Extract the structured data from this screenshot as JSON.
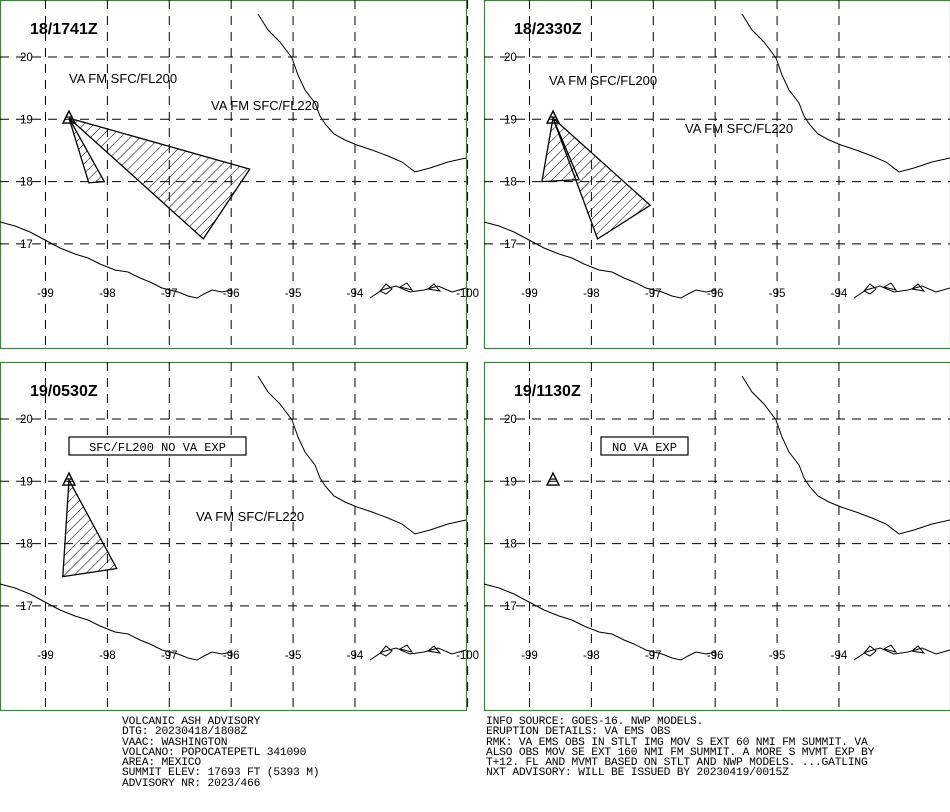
{
  "panels": [
    {
      "time": "18/1741Z",
      "labels": [
        "VA FM SFC/FL200",
        "VA FM SFC/FL220"
      ],
      "boxed_label": "",
      "polygons": [
        [
          [
            -98.62,
            19.02
          ],
          [
            -98.3,
            17.98
          ],
          [
            -98.05,
            18.0
          ]
        ],
        [
          [
            -98.62,
            19.02
          ],
          [
            -95.7,
            18.2
          ],
          [
            -96.45,
            17.08
          ]
        ]
      ]
    },
    {
      "time": "18/2330Z",
      "labels": [
        "VA FM SFC/FL200",
        "VA FM SFC/FL220"
      ],
      "boxed_label": "",
      "polygons": [
        [
          [
            -98.62,
            19.02
          ],
          [
            -98.8,
            18.0
          ],
          [
            -98.2,
            18.03
          ]
        ],
        [
          [
            -98.62,
            19.02
          ],
          [
            -97.05,
            17.62
          ],
          [
            -97.9,
            17.08
          ]
        ]
      ]
    },
    {
      "time": "19/0530Z",
      "labels": [
        "VA FM SFC/FL220"
      ],
      "boxed_label": "SFC/FL200 NO VA EXP",
      "polygons": [
        [
          [
            -98.62,
            19.02
          ],
          [
            -98.72,
            17.47
          ],
          [
            -97.85,
            17.6
          ]
        ]
      ]
    },
    {
      "time": "19/1130Z",
      "labels": [],
      "boxed_label": "NO VA EXP",
      "polygons": []
    }
  ],
  "map": {
    "lat_labels": [
      "20",
      "19",
      "18",
      "17"
    ],
    "lon_labels": [
      "-100",
      "-99",
      "-98",
      "-97",
      "-96",
      "-95",
      "-94"
    ],
    "volcano": {
      "lon": -98.62,
      "lat": 19.02,
      "icon": "volcano-triangle-icon"
    },
    "frame_color": "#2e8b2e"
  },
  "advisory_left": [
    "VOLCANIC ASH ADVISORY",
    "DTG: 20230418/1808Z",
    "VAAC: WASHINGTON",
    "VOLCANO: POPOCATEPETL 341090",
    "AREA: MEXICO",
    "SUMMIT ELEV: 17693 FT (5393 M)",
    "ADVISORY NR: 2023/466"
  ],
  "advisory_right": [
    "INFO SOURCE: GOES-16. NWP MODELS.",
    "ERUPTION DETAILS: VA EMS OBS",
    "RMK: VA EMS OBS IN STLT IMG MOV S EXT 60 NMI FM SUMMIT. VA",
    "ALSO OBS MOV SE EXT 160 NMI FM SUMMIT. A MORE S MVMT EXP BY",
    "T+12. FL AND MVMT BASED ON STLT AND NWP MODELS. ...GATLING",
    "NXT ADVISORY: WILL BE ISSUED BY 20230419/0015Z"
  ]
}
